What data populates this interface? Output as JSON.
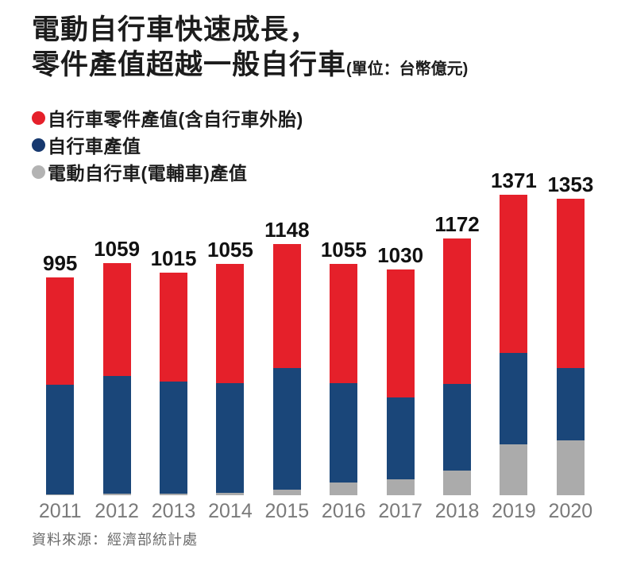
{
  "title": {
    "line1": "電動自行車快速成長，",
    "line2": "零件產值超越一般自行車",
    "unit": "(單位：台幣億元)"
  },
  "legend": [
    {
      "label": "自行車零件產值(含自行車外胎)",
      "color": "#e5202a"
    },
    {
      "label": "自行車產值",
      "color": "#17396f"
    },
    {
      "label": "電動自行車(電輔車)產值",
      "color": "#b3b3b3"
    }
  ],
  "source": "資料來源：經濟部統計處",
  "chart_data": {
    "type": "bar",
    "stacked": true,
    "title": "電動自行車快速成長，零件產值超越一般自行車",
    "unit": "台幣億元",
    "categories": [
      "2011",
      "2012",
      "2013",
      "2014",
      "2015",
      "2016",
      "2017",
      "2018",
      "2019",
      "2020"
    ],
    "totals": [
      995,
      1059,
      1015,
      1055,
      1148,
      1055,
      1030,
      1172,
      1371,
      1353
    ],
    "series": [
      {
        "name": "自行車零件產值(含自行車外胎)",
        "color": "#e5202a",
        "values": [
          491,
          514,
          497,
          542,
          566,
          542,
          584,
          663,
          722,
          774
        ]
      },
      {
        "name": "自行車產值",
        "color": "#1a4679",
        "values": [
          499,
          539,
          511,
          503,
          558,
          453,
          373,
          397,
          417,
          328
        ]
      },
      {
        "name": "電動自行車(電輔車)產值",
        "color": "#ababab",
        "values": [
          5,
          6,
          7,
          10,
          24,
          60,
          73,
          112,
          232,
          251
        ]
      }
    ],
    "value_labels": "totals",
    "ylim": [
      0,
      1400
    ],
    "grid": false,
    "legend_position": "top-left"
  }
}
